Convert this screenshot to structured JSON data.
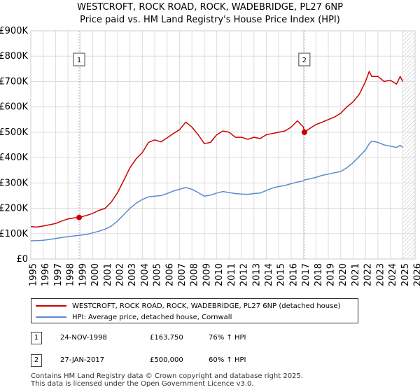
{
  "chart_data": {
    "type": "line",
    "title": "WESTCROFT, ROCK ROAD, ROCK, WADEBRIDGE, PL27 6NP",
    "subtitle": "Price paid vs. HM Land Registry's House Price Index (HPI)",
    "xlim": [
      1995,
      2026
    ],
    "ylim": [
      0,
      900000
    ],
    "x_ticks": [
      "1995",
      "1996",
      "1997",
      "1998",
      "1999",
      "2000",
      "2001",
      "2002",
      "2003",
      "2004",
      "2005",
      "2006",
      "2007",
      "2008",
      "2009",
      "2010",
      "2011",
      "2012",
      "2013",
      "2014",
      "2015",
      "2016",
      "2017",
      "2018",
      "2019",
      "2020",
      "2021",
      "2022",
      "2023",
      "2024",
      "2025",
      "2026"
    ],
    "y_ticks": [
      {
        "value": 0,
        "label": "£0"
      },
      {
        "value": 100000,
        "label": "£100K"
      },
      {
        "value": 200000,
        "label": "£200K"
      },
      {
        "value": 300000,
        "label": "£300K"
      },
      {
        "value": 400000,
        "label": "£400K"
      },
      {
        "value": 500000,
        "label": "£500K"
      },
      {
        "value": 600000,
        "label": "£600K"
      },
      {
        "value": 700000,
        "label": "£700K"
      },
      {
        "value": 800000,
        "label": "£800K"
      },
      {
        "value": 900000,
        "label": "£900K"
      }
    ],
    "grid": true,
    "series": [
      {
        "name": "WESTCROFT, ROCK ROAD, ROCK, WADEBRIDGE, PL27 6NP (detached house)",
        "color": "#cc0000",
        "x": [
          1995.0,
          1995.5,
          1996.0,
          1996.5,
          1997.0,
          1997.5,
          1998.0,
          1998.5,
          1998.9,
          1999.5,
          2000.0,
          2000.5,
          2001.0,
          2001.5,
          2002.0,
          2002.5,
          2003.0,
          2003.5,
          2004.0,
          2004.5,
          2005.0,
          2005.5,
          2006.0,
          2006.5,
          2007.0,
          2007.5,
          2008.0,
          2008.5,
          2009.0,
          2009.5,
          2010.0,
          2010.5,
          2011.0,
          2011.5,
          2012.0,
          2012.5,
          2013.0,
          2013.5,
          2014.0,
          2014.5,
          2015.0,
          2015.5,
          2016.0,
          2016.5,
          2017.0,
          2017.07,
          2017.5,
          2018.0,
          2018.5,
          2019.0,
          2019.5,
          2020.0,
          2020.5,
          2021.0,
          2021.5,
          2022.0,
          2022.3,
          2022.5,
          2023.0,
          2023.5,
          2024.0,
          2024.5,
          2024.8,
          2025.0
        ],
        "values": [
          128000,
          126000,
          130000,
          135000,
          140000,
          150000,
          158000,
          162000,
          163750,
          172000,
          180000,
          192000,
          200000,
          225000,
          262000,
          310000,
          360000,
          395000,
          420000,
          460000,
          470000,
          462000,
          478000,
          495000,
          510000,
          540000,
          520000,
          490000,
          455000,
          460000,
          490000,
          505000,
          500000,
          480000,
          480000,
          472000,
          480000,
          475000,
          490000,
          495000,
          500000,
          505000,
          520000,
          545000,
          520000,
          500000,
          515000,
          530000,
          540000,
          550000,
          560000,
          575000,
          600000,
          620000,
          650000,
          700000,
          740000,
          720000,
          720000,
          700000,
          705000,
          690000,
          720000,
          700000
        ]
      },
      {
        "name": "HPI: Average price, detached house, Cornwall",
        "color": "#5b8bd0",
        "x": [
          1995.0,
          1995.5,
          1996.0,
          1996.5,
          1997.0,
          1997.5,
          1998.0,
          1998.5,
          1998.9,
          1999.5,
          2000.0,
          2000.5,
          2001.0,
          2001.5,
          2002.0,
          2002.5,
          2003.0,
          2003.5,
          2004.0,
          2004.5,
          2005.0,
          2005.5,
          2006.0,
          2006.5,
          2007.0,
          2007.5,
          2008.0,
          2008.5,
          2009.0,
          2009.5,
          2010.0,
          2010.5,
          2011.0,
          2011.5,
          2012.0,
          2012.5,
          2013.0,
          2013.5,
          2014.0,
          2014.5,
          2015.0,
          2015.5,
          2016.0,
          2016.5,
          2017.0,
          2017.07,
          2017.5,
          2018.0,
          2018.5,
          2019.0,
          2019.5,
          2020.0,
          2020.5,
          2021.0,
          2021.5,
          2022.0,
          2022.3,
          2022.5,
          2023.0,
          2023.5,
          2024.0,
          2024.5,
          2024.8,
          2025.0
        ],
        "values": [
          72000,
          72500,
          74000,
          77000,
          81000,
          85000,
          88000,
          91000,
          93000,
          97000,
          103000,
          110000,
          118000,
          130000,
          150000,
          175000,
          200000,
          220000,
          235000,
          245000,
          248000,
          250000,
          258000,
          268000,
          275000,
          282000,
          275000,
          262000,
          248000,
          252000,
          260000,
          266000,
          262000,
          258000,
          256000,
          255000,
          258000,
          260000,
          270000,
          280000,
          286000,
          290000,
          297000,
          303000,
          308000,
          312000,
          316000,
          322000,
          330000,
          335000,
          340000,
          345000,
          360000,
          380000,
          405000,
          430000,
          455000,
          465000,
          460000,
          450000,
          445000,
          440000,
          448000,
          440000
        ]
      }
    ],
    "markers": [
      {
        "id": "1",
        "x": 1998.9,
        "value": 163750
      },
      {
        "id": "2",
        "x": 2017.07,
        "value": 500000
      }
    ],
    "hatched_from": 2025.0
  },
  "legend": {
    "items": [
      "WESTCROFT, ROCK ROAD, ROCK, WADEBRIDGE, PL27 6NP (detached house)",
      "HPI: Average price, detached house, Cornwall"
    ]
  },
  "sales": [
    {
      "id": "1",
      "date": "24-NOV-1998",
      "price": "£163,750",
      "hpi": "76% ↑ HPI"
    },
    {
      "id": "2",
      "date": "27-JAN-2017",
      "price": "£500,000",
      "hpi": "60% ↑ HPI"
    }
  ],
  "footer": {
    "line1": "Contains HM Land Registry data © Crown copyright and database right 2025.",
    "line2": "This data is licensed under the Open Government Licence v3.0."
  }
}
